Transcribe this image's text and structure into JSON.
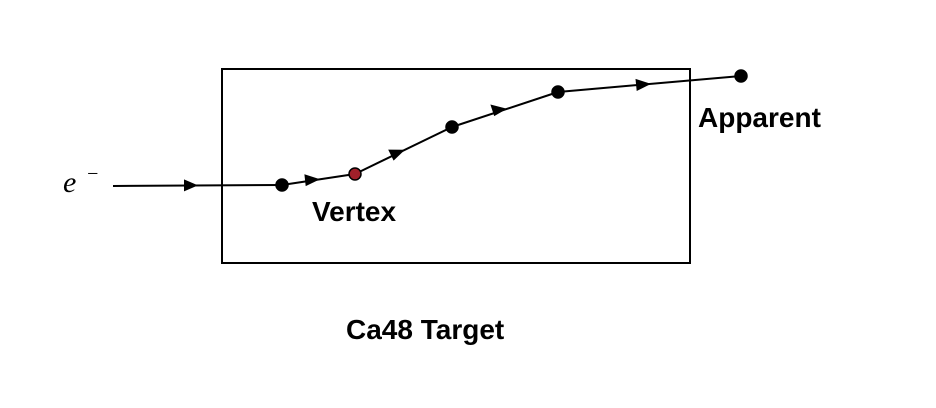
{
  "diagram": {
    "particle_label": "e",
    "particle_superscript": "−",
    "vertex_label": "Vertex",
    "apparent_label": "Apparent",
    "target_label": "Ca48 Target",
    "colors": {
      "line": "#000000",
      "vertex_fill": "#a0202a",
      "point_fill": "#000000"
    }
  }
}
